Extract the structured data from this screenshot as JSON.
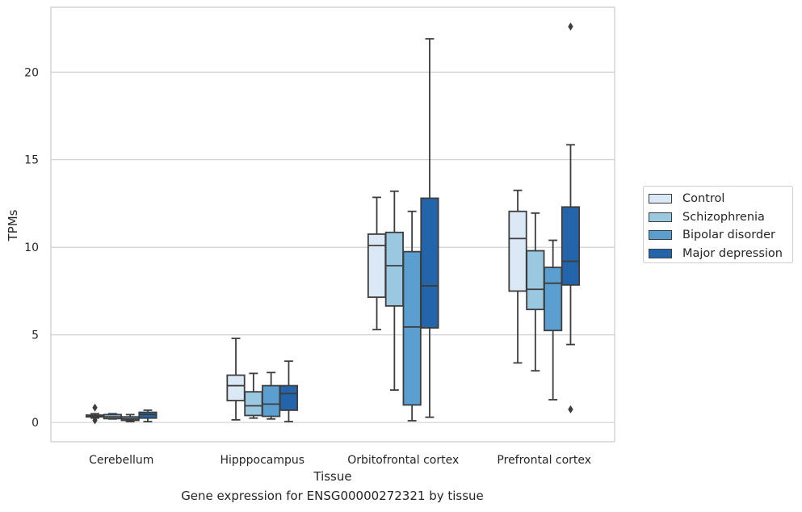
{
  "caption": "Gene expression for ENSG00000272321 by tissue",
  "chart_data": {
    "type": "box",
    "xlabel": "Tissue",
    "ylabel": "TPMs",
    "ylim": [
      -1.1,
      23.7
    ],
    "yticks": [
      0,
      5,
      10,
      15,
      20
    ],
    "grid": "horizontal",
    "legend_position": "right, outside plot",
    "categories": [
      "Cerebellum",
      "Hipppocampus",
      "Orbitofrontal cortex",
      "Prefrontal cortex"
    ],
    "series": [
      {
        "name": "Control",
        "color": "#dbe9f6",
        "boxes": [
          {
            "whislo": 0.25,
            "q1": 0.32,
            "med": 0.38,
            "q3": 0.42,
            "whishi": 0.5,
            "fliers": [
              0.85,
              0.12
            ]
          },
          {
            "whislo": 0.15,
            "q1": 1.25,
            "med": 2.1,
            "q3": 2.7,
            "whishi": 4.8,
            "fliers": []
          },
          {
            "whislo": 5.3,
            "q1": 7.15,
            "med": 10.1,
            "q3": 10.75,
            "whishi": 12.85,
            "fliers": []
          },
          {
            "whislo": 3.4,
            "q1": 7.5,
            "med": 10.5,
            "q3": 12.05,
            "whishi": 13.25,
            "fliers": []
          }
        ]
      },
      {
        "name": "Schizophrenia",
        "color": "#9ac8e0",
        "boxes": [
          {
            "whislo": 0.2,
            "q1": 0.22,
            "med": 0.32,
            "q3": 0.45,
            "whishi": 0.5,
            "fliers": []
          },
          {
            "whislo": 0.25,
            "q1": 0.4,
            "med": 0.95,
            "q3": 1.75,
            "whishi": 2.8,
            "fliers": []
          },
          {
            "whislo": 1.85,
            "q1": 6.65,
            "med": 8.95,
            "q3": 10.85,
            "whishi": 13.2,
            "fliers": []
          },
          {
            "whislo": 2.95,
            "q1": 6.45,
            "med": 7.6,
            "q3": 9.8,
            "whishi": 11.95,
            "fliers": []
          }
        ]
      },
      {
        "name": "Bipolar disorder",
        "color": "#5a9fcf",
        "boxes": [
          {
            "whislo": 0.05,
            "q1": 0.12,
            "med": 0.2,
            "q3": 0.32,
            "whishi": 0.45,
            "fliers": []
          },
          {
            "whislo": 0.2,
            "q1": 0.35,
            "med": 1.05,
            "q3": 2.1,
            "whishi": 2.85,
            "fliers": []
          },
          {
            "whislo": 0.1,
            "q1": 1.0,
            "med": 5.45,
            "q3": 9.75,
            "whishi": 12.05,
            "fliers": []
          },
          {
            "whislo": 1.3,
            "q1": 5.25,
            "med": 7.95,
            "q3": 8.85,
            "whishi": 10.4,
            "fliers": []
          }
        ]
      },
      {
        "name": "Major depression",
        "color": "#2464aa",
        "boxes": [
          {
            "whislo": 0.05,
            "q1": 0.25,
            "med": 0.45,
            "q3": 0.58,
            "whishi": 0.7,
            "fliers": []
          },
          {
            "whislo": 0.05,
            "q1": 0.7,
            "med": 1.65,
            "q3": 2.1,
            "whishi": 3.5,
            "fliers": []
          },
          {
            "whislo": 0.3,
            "q1": 5.4,
            "med": 7.8,
            "q3": 12.8,
            "whishi": 21.9,
            "fliers": []
          },
          {
            "whislo": 4.45,
            "q1": 7.85,
            "med": 9.2,
            "q3": 12.3,
            "whishi": 15.85,
            "fliers": [
              22.6,
              0.75
            ]
          }
        ]
      }
    ]
  }
}
